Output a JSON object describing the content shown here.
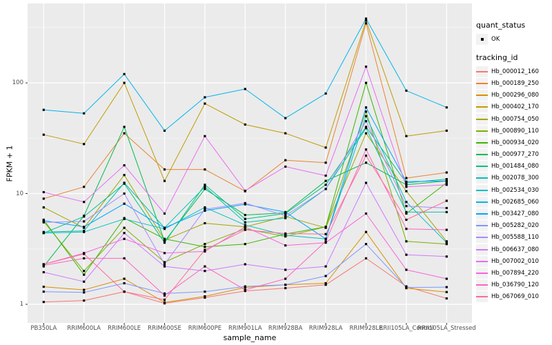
{
  "figure_title": "",
  "axes": {
    "x_title": "sample_name",
    "y_title": "FPKM + 1"
  },
  "legend": {
    "quant_status_title": "quant_status",
    "quant_status_items": [
      {
        "label": "OK"
      }
    ],
    "tracking_id_title": "tracking_id"
  },
  "colors": {
    "panel_background": "#EBEBEB",
    "major_gridline": "#FFFFFF",
    "minor_gridline": "#F5F5F5",
    "point_color": "#000000",
    "tick_label_color": "#4D4D4D",
    "legend_key_background": "#F2F2F2"
  },
  "chart_data": {
    "type": "line",
    "title": "",
    "xlabel": "sample_name",
    "ylabel": "FPKM + 1",
    "y_scale": "log10",
    "legend_position": "right",
    "grid": true,
    "point_shape": "filled-square",
    "quant_status": "OK",
    "ylim": [
      0.68,
      520
    ],
    "y_ticks": [
      1,
      10,
      100
    ],
    "y_tick_labels": [
      "1",
      "10",
      "100"
    ],
    "y_minor_gridlines": [
      3.162,
      31.62,
      316.2
    ],
    "categories": [
      "PB350LA",
      "RRIM600LA",
      "RRIM600LE",
      "RRIM600SE",
      "RRIM600PE",
      "RRIM901LA",
      "RRIM928BA",
      "RRIM928LA",
      "RRIM928LE",
      "RRII105LA_Control",
      "RRII105LA_Stressed"
    ],
    "series": [
      {
        "name": "Hb_000012_160",
        "color": "#F8766D",
        "values": [
          1.05,
          1.08,
          1.3,
          1.02,
          1.15,
          1.32,
          1.4,
          1.5,
          2.6,
          1.45,
          1.13
        ]
      },
      {
        "name": "Hb_000189_250",
        "color": "#EA8331",
        "values": [
          9,
          11.5,
          35,
          16.5,
          16.5,
          10.5,
          20,
          19,
          345,
          13.8,
          15.5
        ]
      },
      {
        "name": "Hb_000296_080",
        "color": "#D89000",
        "values": [
          1.44,
          1.35,
          1.7,
          1.04,
          1.18,
          1.42,
          1.5,
          1.55,
          4.5,
          1.4,
          1.29
        ]
      },
      {
        "name": "Hb_000402_170",
        "color": "#C09B00",
        "values": [
          34,
          28,
          100,
          13,
          65,
          42,
          35,
          26,
          365,
          33,
          37
        ]
      },
      {
        "name": "Hb_000754_050",
        "color": "#A3A500",
        "values": [
          7.5,
          4.9,
          14.7,
          3.8,
          5.4,
          5,
          6.2,
          4.9,
          35,
          10.5,
          3.7
        ]
      },
      {
        "name": "Hb_000890_110",
        "color": "#7CAE00",
        "values": [
          5.6,
          2,
          4.9,
          2.4,
          3.5,
          4.8,
          4.1,
          5,
          55,
          3.7,
          3.5
        ]
      },
      {
        "name": "Hb_000934_020",
        "color": "#39B600",
        "values": [
          5.8,
          1.85,
          6,
          3.9,
          3.3,
          3.5,
          4.3,
          5,
          100,
          6.6,
          12.5
        ]
      },
      {
        "name": "Hb_000977_270",
        "color": "#00BB4E",
        "values": [
          2.2,
          6.3,
          40,
          3.7,
          11,
          6.4,
          6.7,
          13,
          19,
          12,
          13
        ]
      },
      {
        "name": "Hb_001484_080",
        "color": "#00C087",
        "values": [
          4.4,
          6.2,
          12.3,
          3.6,
          12,
          5.9,
          6.6,
          12,
          40,
          12.5,
          13.5
        ]
      },
      {
        "name": "Hb_002078_300",
        "color": "#00C0B4",
        "values": [
          4.5,
          4.6,
          12.5,
          4.9,
          11.5,
          5.5,
          6,
          11,
          39,
          6.8,
          6.8
        ]
      },
      {
        "name": "Hb_002534_030",
        "color": "#00BFC4",
        "values": [
          4.4,
          4.5,
          5.9,
          4.8,
          7.5,
          5.2,
          4.2,
          3.9,
          50,
          8.4,
          3.6
        ]
      },
      {
        "name": "Hb_002685_060",
        "color": "#00B5EC",
        "values": [
          57,
          53,
          120,
          37,
          74,
          88,
          48,
          80,
          380,
          85,
          60
        ]
      },
      {
        "name": "Hb_003427_080",
        "color": "#00A5FF",
        "values": [
          5.7,
          5,
          8.1,
          4.9,
          7,
          8,
          6.8,
          3.9,
          60,
          12.8,
          13
        ]
      },
      {
        "name": "Hb_005282_020",
        "color": "#7F96FF",
        "values": [
          1.3,
          1.28,
          1.55,
          1.25,
          1.3,
          1.45,
          1.5,
          1.8,
          3.5,
          1.42,
          1.43
        ]
      },
      {
        "name": "Hb_005588_110",
        "color": "#AC88FF",
        "values": [
          5.5,
          5.6,
          10,
          2.3,
          7.2,
          8.2,
          6.3,
          11,
          45,
          7.7,
          7.4
        ]
      },
      {
        "name": "Hb_006637_080",
        "color": "#CF78FF",
        "values": [
          1.95,
          1.6,
          4.4,
          2.2,
          2,
          2.3,
          2.05,
          2.2,
          12.5,
          2.8,
          2.7
        ]
      },
      {
        "name": "Hb_007002_010",
        "color": "#E96BF2",
        "values": [
          10.3,
          8.4,
          18,
          6.6,
          33,
          10.6,
          17.5,
          14.5,
          140,
          11.5,
          12
        ]
      },
      {
        "name": "Hb_007894_220",
        "color": "#FA61DB",
        "values": [
          2.3,
          2.9,
          3.9,
          2.9,
          3,
          5,
          3.4,
          3.6,
          6.6,
          2.05,
          1.7
        ]
      },
      {
        "name": "Hb_036790_120",
        "color": "#FF61BF",
        "values": [
          2.25,
          2.6,
          2.6,
          1.2,
          2.2,
          1.35,
          1.7,
          3.7,
          25,
          4.8,
          4.7
        ]
      },
      {
        "name": "Hb_067069_010",
        "color": "#FF6A95",
        "values": [
          2.3,
          2.85,
          1.3,
          1.1,
          3.1,
          4.7,
          4.35,
          4.3,
          22,
          5.8,
          8.6
        ]
      }
    ]
  }
}
